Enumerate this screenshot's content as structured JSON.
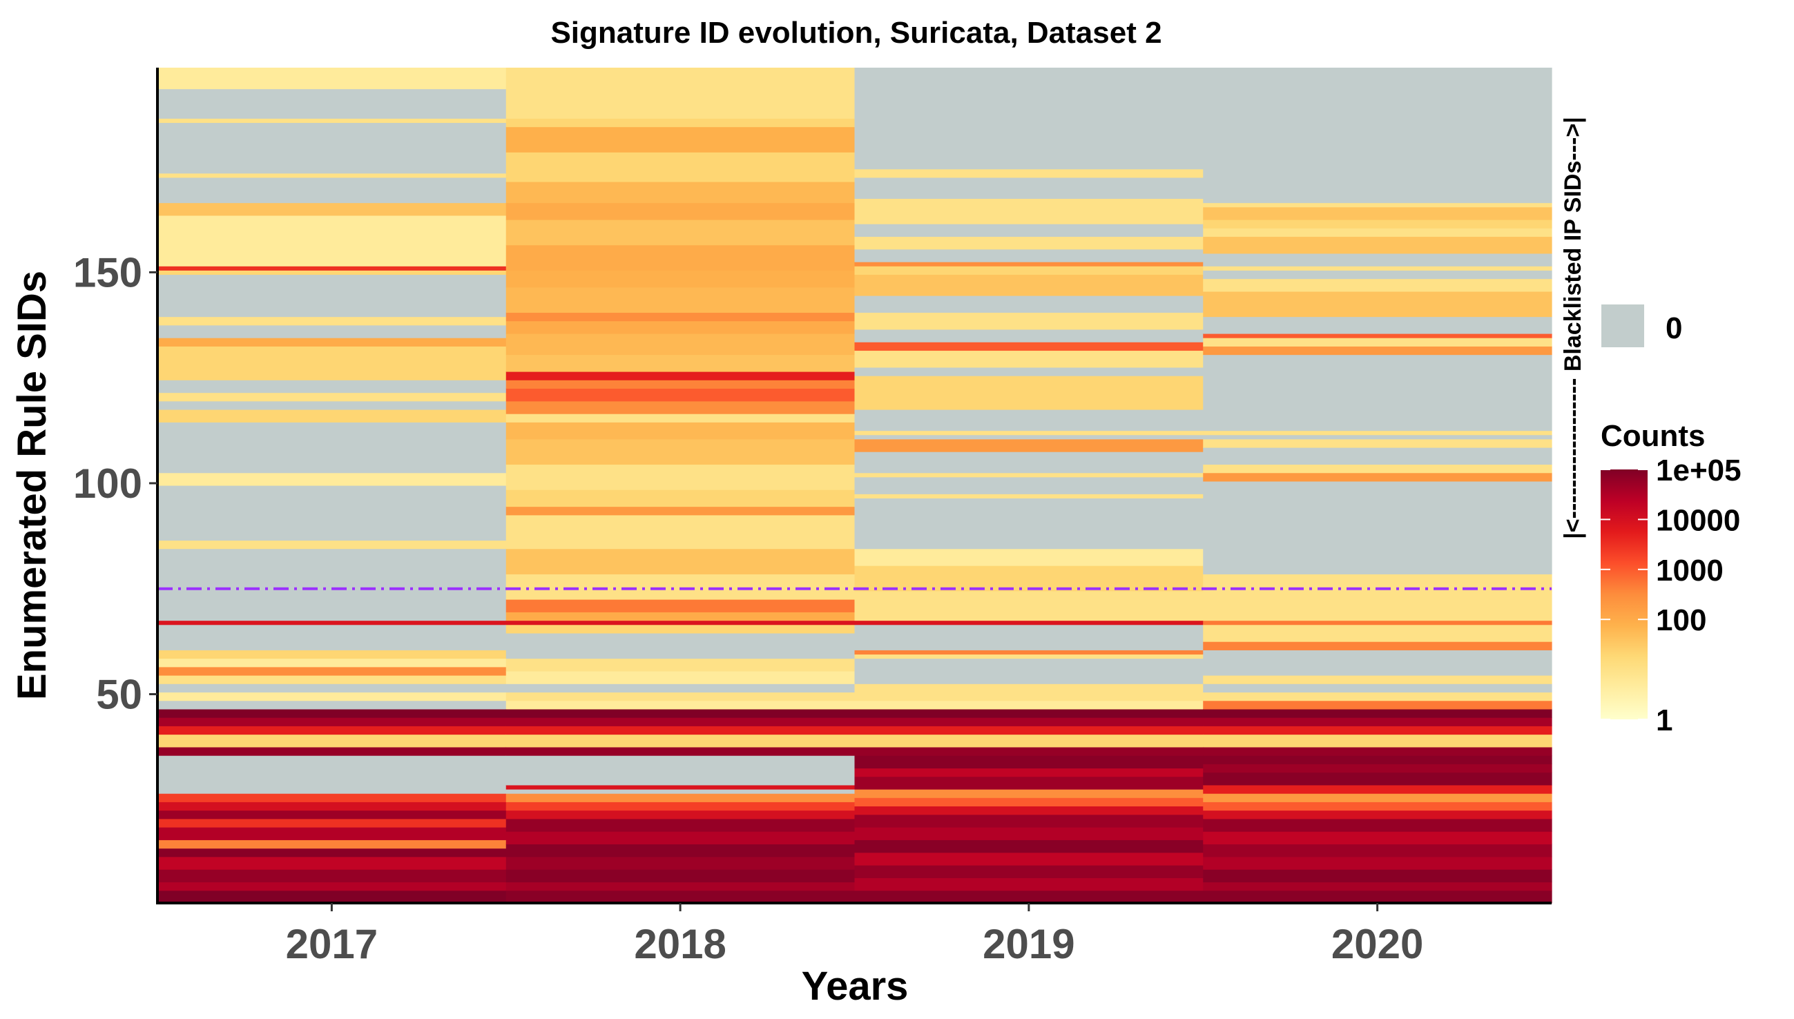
{
  "chart_data": {
    "type": "heatmap",
    "title": "Signature ID evolution, Suricata, Dataset 2",
    "xlabel": "Years",
    "ylabel": "Enumerated Rule SIDs",
    "x_categories": [
      "2017",
      "2018",
      "2019",
      "2020"
    ],
    "y_range": [
      1,
      198
    ],
    "y_ticks": [
      50,
      100,
      150
    ],
    "color_scale": "log",
    "zero_color": "#c2cdcc",
    "zero_label": "0",
    "legend_title": "Counts",
    "legend_ticks": [
      "1e+05",
      "10000",
      "1000",
      "100",
      "1"
    ],
    "legend_tick_values": [
      100000,
      10000,
      1000,
      100,
      1
    ],
    "palette": [
      "#ffffcc",
      "#ffeda0",
      "#fed976",
      "#feb24c",
      "#fd8d3c",
      "#fc4e2a",
      "#e31a1c",
      "#bd0026",
      "#800026"
    ],
    "reference_line_y": 75,
    "reference_line_color": "#9b30ff",
    "annotation": "|<------------------ Blacklisted IP SIDs--->|",
    "series": [
      {
        "name": "2017",
        "bands": [
          [
            1,
            3,
            100000
          ],
          [
            4,
            5,
            30000
          ],
          [
            6,
            8,
            60000
          ],
          [
            9,
            11,
            20000
          ],
          [
            12,
            13,
            80000
          ],
          [
            14,
            15,
            400
          ],
          [
            16,
            18,
            30000
          ],
          [
            19,
            20,
            3000
          ],
          [
            21,
            22,
            50000
          ],
          [
            23,
            24,
            10000
          ],
          [
            25,
            26,
            2000
          ],
          [
            27,
            35,
            0
          ],
          [
            36,
            37,
            60000
          ],
          [
            38,
            40,
            20
          ],
          [
            41,
            42,
            5000
          ],
          [
            43,
            44,
            40000
          ],
          [
            45,
            46,
            100000
          ],
          [
            47,
            48,
            0
          ],
          [
            49,
            50,
            5
          ],
          [
            51,
            52,
            0
          ],
          [
            53,
            54,
            10
          ],
          [
            55,
            56,
            300
          ],
          [
            57,
            58,
            5
          ],
          [
            59,
            60,
            20
          ],
          [
            61,
            66,
            0
          ],
          [
            67,
            67,
            8000
          ],
          [
            68,
            84,
            0
          ],
          [
            85,
            86,
            10
          ],
          [
            87,
            99,
            0
          ],
          [
            100,
            102,
            5
          ],
          [
            103,
            114,
            0
          ],
          [
            115,
            117,
            20
          ],
          [
            118,
            119,
            0
          ],
          [
            120,
            121,
            10
          ],
          [
            122,
            124,
            0
          ],
          [
            125,
            132,
            20
          ],
          [
            133,
            134,
            100
          ],
          [
            135,
            137,
            0
          ],
          [
            138,
            139,
            10
          ],
          [
            140,
            149,
            0
          ],
          [
            150,
            150,
            20
          ],
          [
            151,
            151,
            3000
          ],
          [
            152,
            163,
            5
          ],
          [
            164,
            166,
            40
          ],
          [
            167,
            172,
            0
          ],
          [
            173,
            173,
            10
          ],
          [
            174,
            185,
            0
          ],
          [
            186,
            186,
            10
          ],
          [
            187,
            193,
            0
          ],
          [
            194,
            198,
            5
          ]
        ]
      },
      {
        "name": "2018",
        "bands": [
          [
            1,
            3,
            80000
          ],
          [
            4,
            5,
            40000
          ],
          [
            6,
            8,
            80000
          ],
          [
            9,
            11,
            50000
          ],
          [
            12,
            14,
            80000
          ],
          [
            15,
            17,
            30000
          ],
          [
            18,
            20,
            60000
          ],
          [
            21,
            22,
            10000
          ],
          [
            23,
            24,
            2000
          ],
          [
            25,
            26,
            300
          ],
          [
            27,
            27,
            0
          ],
          [
            28,
            28,
            8000
          ],
          [
            29,
            35,
            0
          ],
          [
            36,
            37,
            60000
          ],
          [
            38,
            40,
            20
          ],
          [
            41,
            42,
            5000
          ],
          [
            43,
            44,
            40000
          ],
          [
            45,
            46,
            100000
          ],
          [
            47,
            48,
            5
          ],
          [
            49,
            50,
            10
          ],
          [
            51,
            52,
            0
          ],
          [
            53,
            55,
            5
          ],
          [
            56,
            58,
            10
          ],
          [
            59,
            64,
            0
          ],
          [
            65,
            66,
            20
          ],
          [
            67,
            67,
            8000
          ],
          [
            68,
            69,
            100
          ],
          [
            70,
            72,
            500
          ],
          [
            73,
            78,
            10
          ],
          [
            79,
            84,
            40
          ],
          [
            85,
            92,
            10
          ],
          [
            93,
            94,
            200
          ],
          [
            95,
            98,
            20
          ],
          [
            99,
            104,
            10
          ],
          [
            105,
            110,
            40
          ],
          [
            111,
            114,
            60
          ],
          [
            115,
            116,
            10
          ],
          [
            117,
            119,
            300
          ],
          [
            120,
            122,
            1000
          ],
          [
            123,
            124,
            400
          ],
          [
            125,
            126,
            5000
          ],
          [
            127,
            130,
            40
          ],
          [
            131,
            135,
            60
          ],
          [
            136,
            138,
            100
          ],
          [
            139,
            140,
            300
          ],
          [
            141,
            146,
            60
          ],
          [
            147,
            150,
            80
          ],
          [
            151,
            156,
            100
          ],
          [
            157,
            162,
            40
          ],
          [
            163,
            166,
            100
          ],
          [
            167,
            171,
            60
          ],
          [
            172,
            178,
            20
          ],
          [
            179,
            184,
            80
          ],
          [
            185,
            186,
            20
          ],
          [
            187,
            198,
            10
          ]
        ]
      },
      {
        "name": "2019",
        "bands": [
          [
            1,
            3,
            80000
          ],
          [
            4,
            6,
            30000
          ],
          [
            7,
            9,
            60000
          ],
          [
            10,
            12,
            20000
          ],
          [
            13,
            15,
            80000
          ],
          [
            16,
            18,
            30000
          ],
          [
            19,
            21,
            50000
          ],
          [
            22,
            23,
            10000
          ],
          [
            24,
            25,
            1000
          ],
          [
            26,
            27,
            300
          ],
          [
            28,
            30,
            50000
          ],
          [
            31,
            32,
            20000
          ],
          [
            33,
            35,
            80000
          ],
          [
            36,
            37,
            60000
          ],
          [
            38,
            40,
            20
          ],
          [
            41,
            42,
            5000
          ],
          [
            43,
            44,
            40000
          ],
          [
            45,
            46,
            100000
          ],
          [
            47,
            48,
            5
          ],
          [
            49,
            52,
            10
          ],
          [
            53,
            58,
            0
          ],
          [
            59,
            59,
            10
          ],
          [
            60,
            60,
            400
          ],
          [
            61,
            66,
            0
          ],
          [
            67,
            67,
            8000
          ],
          [
            68,
            74,
            10
          ],
          [
            75,
            80,
            20
          ],
          [
            81,
            84,
            5
          ],
          [
            85,
            96,
            0
          ],
          [
            97,
            97,
            10
          ],
          [
            98,
            101,
            0
          ],
          [
            102,
            102,
            10
          ],
          [
            103,
            107,
            0
          ],
          [
            108,
            110,
            200
          ],
          [
            111,
            111,
            0
          ],
          [
            112,
            112,
            10
          ],
          [
            113,
            117,
            0
          ],
          [
            118,
            125,
            20
          ],
          [
            126,
            127,
            0
          ],
          [
            128,
            131,
            10
          ],
          [
            132,
            133,
            1000
          ],
          [
            134,
            136,
            0
          ],
          [
            137,
            140,
            10
          ],
          [
            141,
            144,
            0
          ],
          [
            145,
            149,
            40
          ],
          [
            150,
            151,
            20
          ],
          [
            152,
            152,
            300
          ],
          [
            153,
            155,
            0
          ],
          [
            156,
            158,
            10
          ],
          [
            159,
            161,
            0
          ],
          [
            162,
            167,
            10
          ],
          [
            168,
            172,
            0
          ],
          [
            173,
            174,
            10
          ],
          [
            175,
            198,
            0
          ]
        ]
      },
      {
        "name": "2020",
        "bands": [
          [
            1,
            3,
            80000
          ],
          [
            4,
            5,
            40000
          ],
          [
            6,
            8,
            80000
          ],
          [
            9,
            11,
            30000
          ],
          [
            12,
            14,
            50000
          ],
          [
            15,
            17,
            20000
          ],
          [
            18,
            20,
            60000
          ],
          [
            21,
            22,
            10000
          ],
          [
            23,
            24,
            1000
          ],
          [
            25,
            26,
            200
          ],
          [
            27,
            28,
            5000
          ],
          [
            29,
            31,
            80000
          ],
          [
            32,
            33,
            50000
          ],
          [
            34,
            35,
            80000
          ],
          [
            36,
            37,
            60000
          ],
          [
            38,
            40,
            20
          ],
          [
            41,
            42,
            5000
          ],
          [
            43,
            44,
            40000
          ],
          [
            45,
            46,
            100000
          ],
          [
            47,
            48,
            500
          ],
          [
            49,
            50,
            10
          ],
          [
            51,
            52,
            0
          ],
          [
            53,
            54,
            10
          ],
          [
            55,
            60,
            0
          ],
          [
            61,
            62,
            400
          ],
          [
            63,
            66,
            10
          ],
          [
            67,
            67,
            500
          ],
          [
            68,
            74,
            10
          ],
          [
            75,
            78,
            10
          ],
          [
            79,
            100,
            0
          ],
          [
            101,
            102,
            200
          ],
          [
            103,
            104,
            10
          ],
          [
            105,
            108,
            0
          ],
          [
            109,
            110,
            10
          ],
          [
            111,
            111,
            0
          ],
          [
            112,
            112,
            10
          ],
          [
            113,
            130,
            0
          ],
          [
            131,
            132,
            200
          ],
          [
            133,
            134,
            10
          ],
          [
            135,
            135,
            1000
          ],
          [
            136,
            139,
            0
          ],
          [
            140,
            145,
            40
          ],
          [
            146,
            148,
            10
          ],
          [
            149,
            150,
            0
          ],
          [
            151,
            151,
            10
          ],
          [
            152,
            154,
            0
          ],
          [
            155,
            158,
            40
          ],
          [
            159,
            160,
            10
          ],
          [
            161,
            162,
            20
          ],
          [
            163,
            165,
            40
          ],
          [
            166,
            166,
            10
          ],
          [
            167,
            198,
            0
          ]
        ]
      }
    ]
  }
}
